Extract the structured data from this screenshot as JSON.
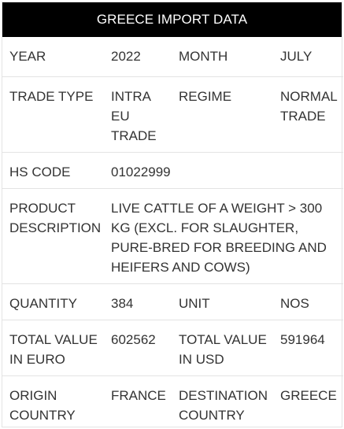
{
  "title": "GREECE IMPORT DATA",
  "rows": [
    {
      "l1": "YEAR",
      "v1": "2022",
      "l2": "MONTH",
      "v2": "JULY"
    },
    {
      "l1": "TRADE TYPE",
      "v1": "INTRA EU TRADE",
      "l2": "REGIME",
      "v2": "NORMAL TRADE"
    },
    {
      "l1": "HS CODE",
      "v1": "01022999"
    },
    {
      "l1": "PRODUCT DESCRIPTION",
      "v1": "LIVE CATTLE OF A WEIGHT > 300 KG (EXCL. FOR SLAUGHTER, PURE-BRED FOR BREEDING AND HEIFERS AND COWS)"
    },
    {
      "l1": "QUANTITY",
      "v1": "384",
      "l2": "UNIT",
      "v2": "NOS"
    },
    {
      "l1": "TOTAL VALUE IN EURO",
      "v1": "602562",
      "l2": "TOTAL VALUE IN USD",
      "v2": "591964"
    },
    {
      "l1": "ORIGIN COUNTRY",
      "v1": "FRANCE",
      "l2": "DESTINATION COUNTRY",
      "v2": "GREECE"
    }
  ]
}
